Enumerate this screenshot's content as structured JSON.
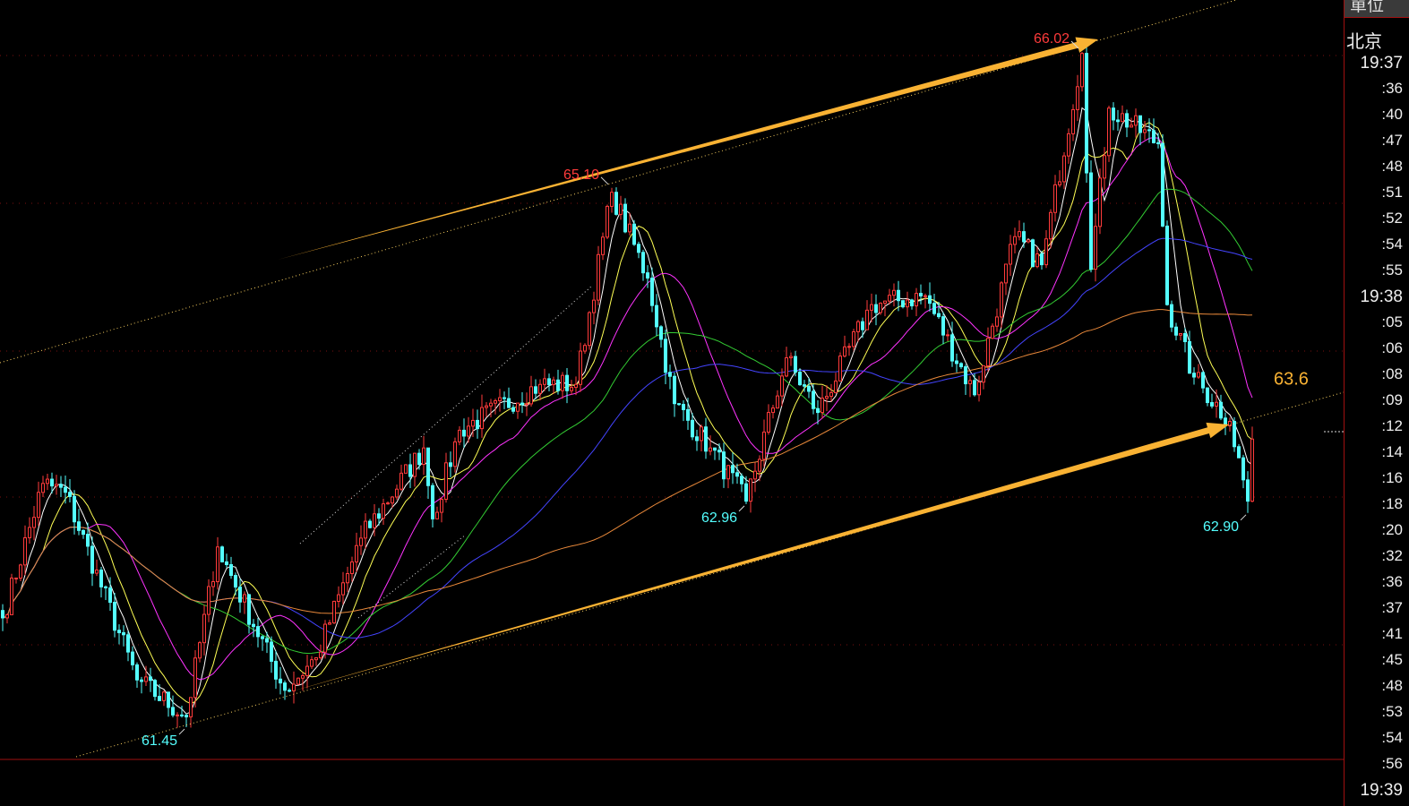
{
  "axis": {
    "unit_label": "單位",
    "city_label": "北京",
    "time_ticks": [
      "19:37",
      ":36",
      ":40",
      ":47",
      ":48",
      ":51",
      ":52",
      ":54",
      ":55",
      "19:38",
      ":05",
      ":06",
      ":08",
      ":09",
      ":12",
      ":14",
      ":16",
      ":18",
      ":20",
      ":32",
      ":36",
      ":37",
      ":41",
      ":45",
      ":48",
      ":53",
      ":54",
      ":56",
      "19:39"
    ]
  },
  "chart_data": {
    "type": "candlestick",
    "title": "",
    "ylim": [
      60.8,
      66.3
    ],
    "grid": true,
    "colors": {
      "up": "#ff3b3b",
      "down": "#54ffff",
      "arrow": "#f9b233",
      "high_label": "#ff3b3b",
      "low_label": "#54ffff",
      "level_label": "#f9b233"
    },
    "close_path": [
      [
        0,
        62.19
      ],
      [
        9,
        63.1
      ],
      [
        14,
        63.04
      ],
      [
        30,
        61.77
      ],
      [
        41,
        61.52
      ],
      [
        48,
        62.67
      ],
      [
        63,
        61.7
      ],
      [
        70,
        61.92
      ],
      [
        80,
        62.73
      ],
      [
        94,
        63.34
      ],
      [
        96,
        62.86
      ],
      [
        102,
        63.46
      ],
      [
        120,
        63.77
      ],
      [
        128,
        63.77
      ],
      [
        136,
        65.07
      ],
      [
        144,
        64.49
      ],
      [
        150,
        63.64
      ],
      [
        158,
        63.34
      ],
      [
        166,
        62.98
      ],
      [
        175,
        63.95
      ],
      [
        182,
        63.58
      ],
      [
        194,
        64.31
      ],
      [
        206,
        64.37
      ],
      [
        217,
        63.7
      ],
      [
        226,
        64.77
      ],
      [
        232,
        64.58
      ],
      [
        241,
        66.01
      ],
      [
        243,
        64.55
      ],
      [
        247,
        65.64
      ],
      [
        258,
        65.4
      ],
      [
        260,
        64.31
      ],
      [
        266,
        63.82
      ],
      [
        274,
        63.52
      ],
      [
        278,
        62.98
      ],
      [
        279,
        63.4
      ]
    ],
    "moving_averages": [
      {
        "period": 5,
        "color": "#ffffff"
      },
      {
        "period": 10,
        "color": "#ffff55"
      },
      {
        "period": 20,
        "color": "#ff33ff"
      },
      {
        "period": 40,
        "color": "#33cc33"
      },
      {
        "period": 60,
        "color": "#4444ff"
      },
      {
        "period": 120,
        "color": "#e8883a"
      }
    ],
    "annotations": [
      {
        "text": "66.02",
        "bar": 241,
        "price": 66.02,
        "kind": "high"
      },
      {
        "text": "65.10",
        "bar": 136,
        "price": 65.1,
        "kind": "high"
      },
      {
        "text": "61.45",
        "bar": 41,
        "price": 61.45,
        "kind": "low"
      },
      {
        "text": "62.96",
        "bar": 166,
        "price": 62.96,
        "kind": "low"
      },
      {
        "text": "62.90",
        "bar": 278,
        "price": 62.9,
        "kind": "low"
      },
      {
        "text": "63.6",
        "bar": 289,
        "price": 63.6,
        "kind": "level"
      }
    ]
  }
}
